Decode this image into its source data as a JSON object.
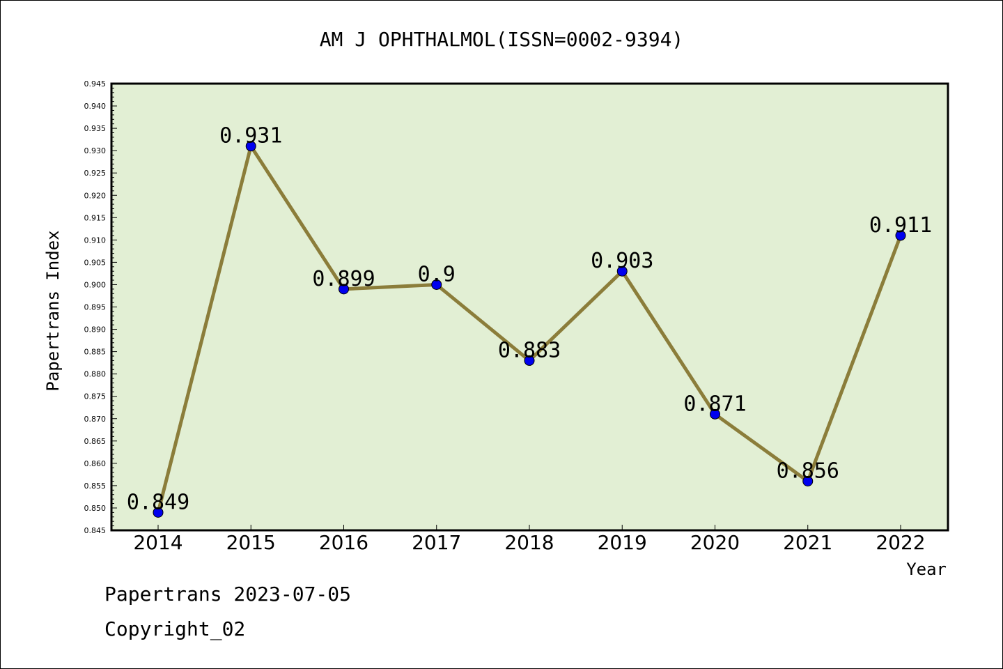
{
  "chart_data": {
    "type": "line",
    "title": "AM J OPHTHALMOL(ISSN=0002-9394)",
    "xlabel": "Year",
    "ylabel": "Papertrans Index",
    "x": [
      "2014",
      "2015",
      "2016",
      "2017",
      "2018",
      "2019",
      "2020",
      "2021",
      "2022"
    ],
    "series": [
      {
        "values": [
          0.849,
          0.931,
          0.899,
          0.9,
          0.883,
          0.903,
          0.871,
          0.856,
          0.911
        ],
        "labels": [
          "0.849",
          "0.931",
          "0.899",
          "0.9",
          "0.883",
          "0.903",
          "0.871",
          "0.856",
          "0.911"
        ]
      }
    ],
    "ylim": [
      0.845,
      0.945
    ],
    "yticks": [
      "0.845",
      "0.850",
      "0.855",
      "0.860",
      "0.865",
      "0.870",
      "0.875",
      "0.880",
      "0.885",
      "0.890",
      "0.895",
      "0.900",
      "0.905",
      "0.910",
      "0.915",
      "0.920",
      "0.925",
      "0.930",
      "0.935",
      "0.940",
      "0.945"
    ],
    "grid": false,
    "colors": {
      "plot_bg": "#e2efd4",
      "line": "#8b7d3a",
      "marker": "#0000ee"
    }
  },
  "footer": {
    "date_text": "Papertrans 2023-07-05",
    "copyright_text": "Copyright_02"
  }
}
